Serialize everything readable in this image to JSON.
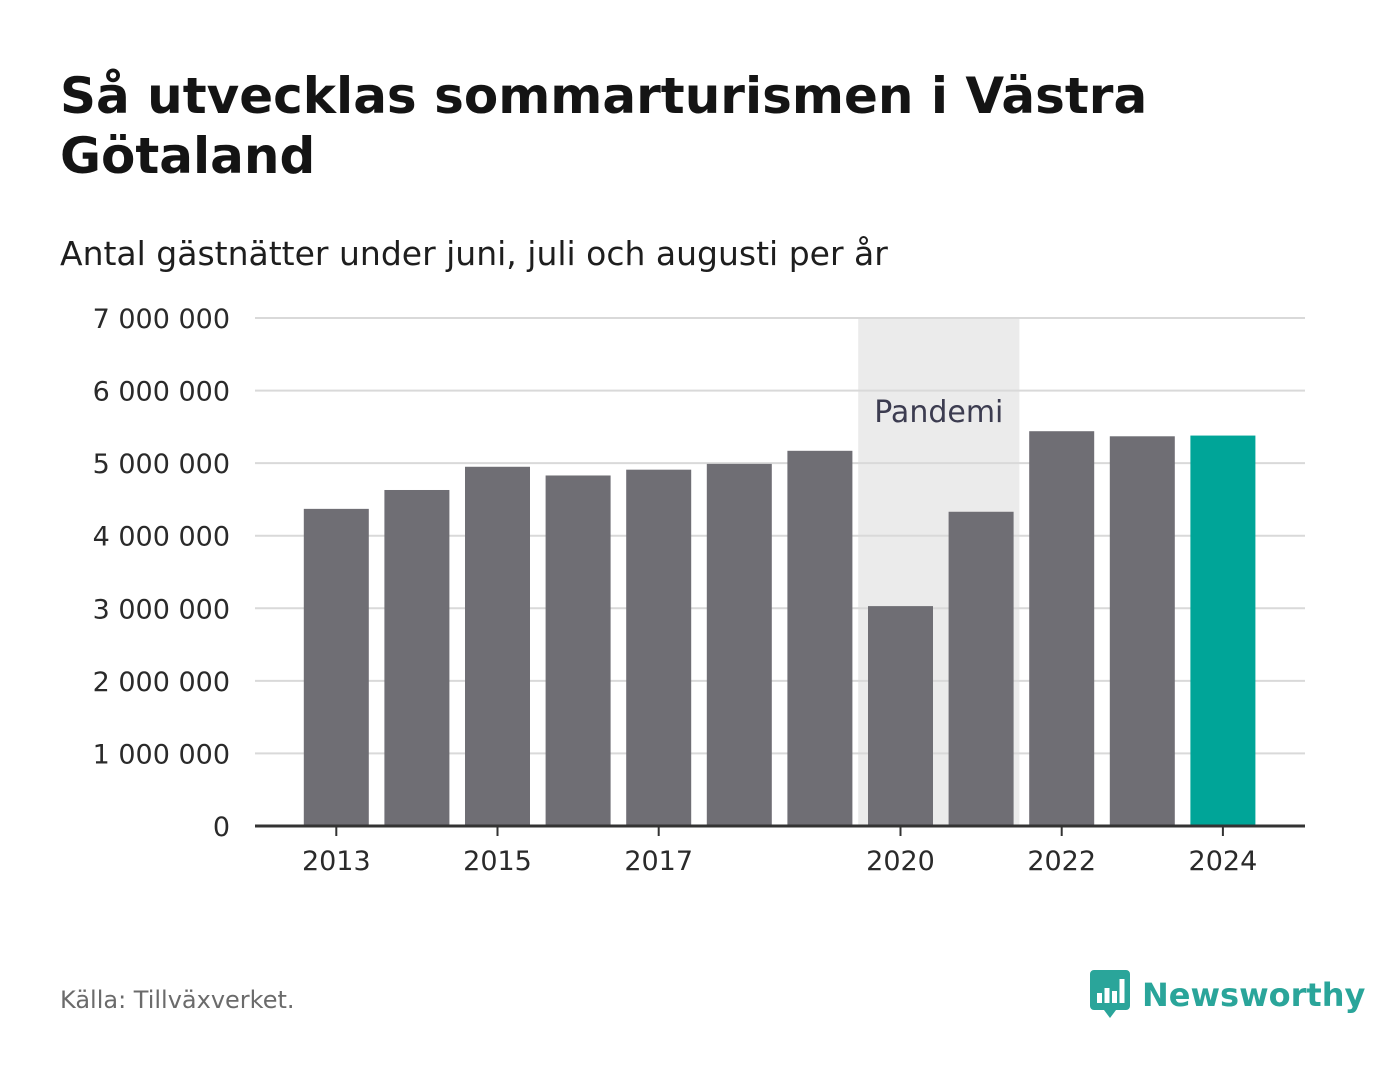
{
  "title": "Så utvecklas sommarturismen i Västra Götaland",
  "subtitle": "Antal gästnätter under juni, juli och augusti per år",
  "source": "Källa: Tillväxverket.",
  "brand": {
    "name": "Newsworthy",
    "logo_icon": "newsworthy-bar-chart-icon",
    "color": "#2aa59a"
  },
  "colors": {
    "bar": "#6f6e74",
    "highlight": "#00a598",
    "band": "#ebebeb",
    "grid": "#d9d9d9",
    "axis": "#333333"
  },
  "chart_data": {
    "type": "bar",
    "categories": [
      "2013",
      "2014",
      "2015",
      "2016",
      "2017",
      "2018",
      "2019",
      "2020",
      "2021",
      "2022",
      "2023",
      "2024"
    ],
    "values": [
      4370000,
      4630000,
      4950000,
      4830000,
      4910000,
      4990000,
      5170000,
      3030000,
      4330000,
      5440000,
      5370000,
      5380000
    ],
    "tick_labels": [
      "2013",
      "2015",
      "2017",
      "2020",
      "2022",
      "2024"
    ],
    "highlight_category": "2024",
    "ylim": [
      0,
      7000000
    ],
    "yticks": [
      0,
      1000000,
      2000000,
      3000000,
      4000000,
      5000000,
      6000000,
      7000000
    ],
    "ytick_labels": [
      "0",
      "1 000 000",
      "2 000 000",
      "3 000 000",
      "4 000 000",
      "5 000 000",
      "6 000 000",
      "7 000 000"
    ],
    "grid": true,
    "annotations": [
      {
        "text": "Pandemi",
        "from": "2020",
        "to": "2021"
      }
    ]
  }
}
